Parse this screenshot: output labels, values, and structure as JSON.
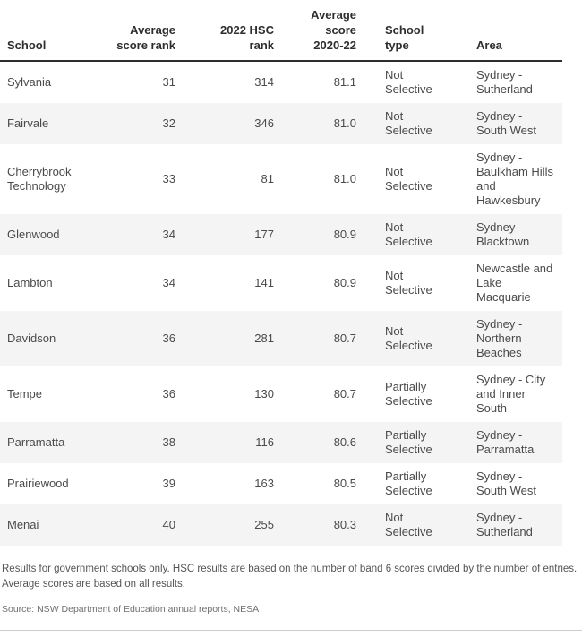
{
  "chart_data": {
    "type": "table",
    "title": "",
    "columns": [
      "School",
      "Average score rank",
      "2022 HSC rank",
      "Average score 2020-22",
      "School type",
      "Area"
    ],
    "rows": [
      [
        "Sylvania",
        "31",
        "314",
        "81.1",
        "Not Selective",
        "Sydney - Sutherland"
      ],
      [
        "Fairvale",
        "32",
        "346",
        "81.0",
        "Not Selective",
        "Sydney - South West"
      ],
      [
        "Cherrybrook Technology",
        "33",
        "81",
        "81.0",
        "Not Selective",
        "Sydney - Baulkham Hills and Hawkesbury"
      ],
      [
        "Glenwood",
        "34",
        "177",
        "80.9",
        "Not Selective",
        "Sydney - Blacktown"
      ],
      [
        "Lambton",
        "34",
        "141",
        "80.9",
        "Not Selective",
        "Newcastle and Lake Macquarie"
      ],
      [
        "Davidson",
        "36",
        "281",
        "80.7",
        "Not Selective",
        "Sydney - Northern Beaches"
      ],
      [
        "Tempe",
        "36",
        "130",
        "80.7",
        "Partially Selective",
        "Sydney - City and Inner South"
      ],
      [
        "Parramatta",
        "38",
        "116",
        "80.6",
        "Partially Selective",
        "Sydney - Parramatta"
      ],
      [
        "Prairiewood",
        "39",
        "163",
        "80.5",
        "Partially Selective",
        "Sydney - South West"
      ],
      [
        "Menai",
        "40",
        "255",
        "80.3",
        "Not Selective",
        "Sydney - Sutherland"
      ]
    ],
    "notes": "Results for government schools only. HSC results are based on the number of band 6 scores divided by the number of entries. Average scores are based on all results.",
    "source": "Source: NSW Department of Education annual reports, NESA",
    "layout": {
      "striped_rows": "even",
      "numeric_columns_right_aligned": true
    }
  },
  "colors": {
    "header_text": "#2e2e2e",
    "header_border": "#2e2e2e",
    "body_text": "#4a4a4a",
    "row_stripe": "#f4f4f4",
    "note_text": "#555555",
    "source_text": "#6f6f6f",
    "bottom_rule": "#cccccc"
  }
}
